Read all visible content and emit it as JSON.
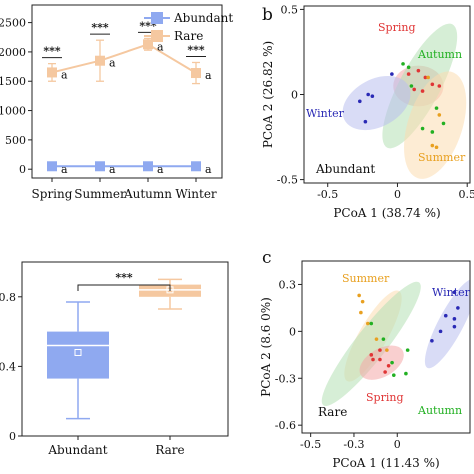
{
  "chart_data": [
    {
      "id": "a",
      "type": "line",
      "categories": [
        "Spring",
        "Summer",
        "Autumn",
        "Winter"
      ],
      "yticks": [
        0,
        500,
        1000,
        1500,
        2000,
        2500
      ],
      "ylim": [
        -150,
        2800
      ],
      "series": [
        {
          "name": "Abundant",
          "color": "#8fa9f0",
          "values": [
            50,
            50,
            50,
            50
          ],
          "err": [
            0,
            0,
            0,
            0
          ],
          "letters": [
            "a",
            "a",
            "a",
            "a"
          ]
        },
        {
          "name": "Rare",
          "color": "#f5c8a0",
          "values": [
            1650,
            1850,
            2130,
            1640
          ],
          "err": [
            150,
            350,
            100,
            180
          ],
          "letters": [
            "a",
            "a",
            "a",
            "a"
          ]
        }
      ],
      "significance": [
        "***",
        "***",
        "***",
        "***"
      ]
    },
    {
      "id": "b",
      "type": "scatter",
      "letter": "b",
      "label": "Abundant",
      "xlabel": "PCoA 1 (38.74 %)",
      "ylabel": "PCoA 2 (26.82 %)",
      "xlim": [
        -0.67,
        0.52
      ],
      "ylim": [
        -0.52,
        0.52
      ],
      "xticks": [
        -0.5,
        0.0,
        0.5
      ],
      "yticks": [
        0.5,
        0.0,
        -0.5
      ],
      "groups": [
        {
          "name": "Spring",
          "color": "#e03535",
          "ellipse_color": "#f4a7a7",
          "ellipse": {
            "cx": 0.15,
            "cy": 0.05,
            "rx": 0.18,
            "ry": 0.12,
            "angle": 0
          },
          "points": [
            [
              0.08,
              0.12
            ],
            [
              0.15,
              0.14
            ],
            [
              0.2,
              0.1
            ],
            [
              0.25,
              0.06
            ],
            [
              0.12,
              0.03
            ],
            [
              0.18,
              0.02
            ],
            [
              0.3,
              0.05
            ]
          ]
        },
        {
          "name": "Autumn",
          "color": "#22b022",
          "ellipse_color": "#b5e0b5",
          "ellipse": {
            "cx": 0.16,
            "cy": 0.05,
            "rx": 0.5,
            "ry": 0.12,
            "angle": -62
          },
          "points": [
            [
              0.04,
              0.18
            ],
            [
              0.08,
              0.16
            ],
            [
              0.1,
              0.05
            ],
            [
              0.28,
              -0.08
            ],
            [
              0.33,
              -0.17
            ],
            [
              0.25,
              -0.22
            ],
            [
              0.18,
              -0.2
            ]
          ]
        },
        {
          "name": "Summer",
          "color": "#e8a020",
          "ellipse_color": "#fbdcb0",
          "ellipse": {
            "cx": 0.27,
            "cy": -0.18,
            "rx": 0.4,
            "ry": 0.16,
            "angle": -72
          },
          "points": [
            [
              0.25,
              -0.3
            ],
            [
              0.28,
              -0.31
            ],
            [
              0.3,
              -0.12
            ],
            [
              0.22,
              0.1
            ]
          ]
        },
        {
          "name": "Winter",
          "color": "#2a2ab5",
          "ellipse_color": "#b9bfee",
          "ellipse": {
            "cx": -0.15,
            "cy": -0.05,
            "rx": 0.26,
            "ry": 0.14,
            "angle": -28
          },
          "points": [
            [
              -0.27,
              -0.04
            ],
            [
              -0.21,
              0.0
            ],
            [
              -0.18,
              -0.01
            ],
            [
              -0.23,
              -0.16
            ],
            [
              -0.04,
              0.12
            ]
          ]
        }
      ]
    },
    {
      "id": "d",
      "type": "box",
      "categories": [
        "Abundant",
        "Rare"
      ],
      "ylim": [
        0,
        1.0
      ],
      "yticks": [
        0,
        0.4,
        0.8
      ],
      "boxes": [
        {
          "name": "Abundant",
          "color": "#8fa9f0",
          "min": 0.1,
          "q1": 0.33,
          "median": 0.52,
          "mean": 0.48,
          "q3": 0.6,
          "max": 0.77
        },
        {
          "name": "Rare",
          "color": "#f5c8a0",
          "min": 0.73,
          "q1": 0.8,
          "median": 0.84,
          "mean": 0.84,
          "q3": 0.87,
          "max": 0.9
        }
      ],
      "significance": "***"
    },
    {
      "id": "c",
      "type": "scatter",
      "letter": "c",
      "label": "Rare",
      "xlabel": "PCoA 1 (11.43 %)",
      "ylabel": "PCoA 2 (8.6 0%)",
      "xlim": [
        -0.55,
        0.42
      ],
      "ylim": [
        -0.65,
        0.45
      ],
      "xticks": [
        -0.5,
        -0.25,
        0.0
      ],
      "yticks": [
        0.3,
        0.0,
        -0.3,
        -0.6
      ],
      "groups": [
        {
          "name": "Summer",
          "color": "#e8a020",
          "ellipse_color": "#fbdcb0",
          "ellipse": {
            "cx": -0.14,
            "cy": -0.03,
            "rx": 0.3,
            "ry": 0.09,
            "angle": -60
          },
          "points": [
            [
              -0.22,
              0.23
            ],
            [
              -0.2,
              0.19
            ],
            [
              -0.21,
              0.12
            ],
            [
              -0.17,
              0.05
            ],
            [
              -0.12,
              -0.05
            ],
            [
              -0.06,
              -0.12
            ]
          ]
        },
        {
          "name": "Autumn",
          "color": "#22b022",
          "ellipse_color": "#b5e0b5",
          "ellipse": {
            "cx": -0.15,
            "cy": -0.08,
            "rx": 0.45,
            "ry": 0.1,
            "angle": -52
          },
          "points": [
            [
              -0.15,
              0.05
            ],
            [
              -0.08,
              -0.05
            ],
            [
              -0.03,
              -0.2
            ],
            [
              0.05,
              -0.27
            ],
            [
              -0.02,
              -0.28
            ],
            [
              0.06,
              -0.12
            ]
          ]
        },
        {
          "name": "Spring",
          "color": "#e03535",
          "ellipse_color": "#f4a7a7",
          "ellipse": {
            "cx": -0.09,
            "cy": -0.2,
            "rx": 0.14,
            "ry": 0.09,
            "angle": -30
          },
          "points": [
            [
              -0.15,
              -0.15
            ],
            [
              -0.14,
              -0.18
            ],
            [
              -0.1,
              -0.18
            ],
            [
              -0.05,
              -0.22
            ],
            [
              -0.07,
              -0.26
            ],
            [
              -0.1,
              -0.12
            ]
          ]
        },
        {
          "name": "Winter",
          "color": "#2a2ab5",
          "ellipse_color": "#b9bfee",
          "ellipse": {
            "cx": 0.31,
            "cy": 0.05,
            "rx": 0.29,
            "ry": 0.08,
            "angle": -62
          },
          "points": [
            [
              0.28,
              0.1
            ],
            [
              0.33,
              0.08
            ],
            [
              0.33,
              0.03
            ],
            [
              0.25,
              0.0
            ],
            [
              0.2,
              -0.06
            ],
            [
              0.33,
              0.25
            ],
            [
              0.35,
              0.15
            ]
          ]
        }
      ]
    }
  ]
}
